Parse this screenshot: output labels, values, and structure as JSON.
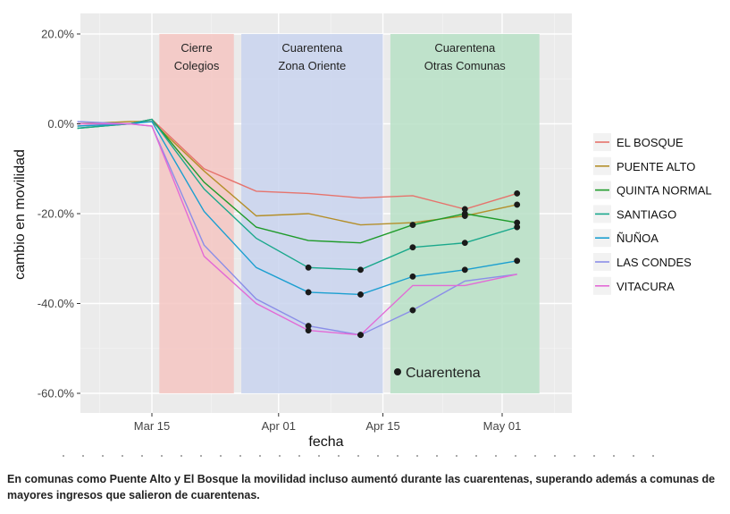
{
  "chart_data": {
    "type": "line",
    "xlabel": "fecha",
    "ylabel": "cambio en movilidad",
    "ylim": [
      -62,
      21
    ],
    "x_tick_labels": [
      "Mar 15",
      "Apr 01",
      "Apr 15",
      "May 01"
    ],
    "y_tick_labels": [
      "20.0%",
      "0.0%",
      "-20.0%",
      "-40.0%",
      "-60.0%"
    ],
    "y_ticks": [
      20,
      0,
      -20,
      -40,
      -60
    ],
    "x_dates": [
      "2020-03-05",
      "2020-03-12",
      "2020-03-15",
      "2020-03-22",
      "2020-03-29",
      "2020-04-05",
      "2020-04-12",
      "2020-04-19",
      "2020-04-26",
      "2020-05-03"
    ],
    "bands": [
      {
        "label_lines": [
          "Cierre",
          "Colegios"
        ],
        "start": "2020-03-16",
        "end": "2020-03-26",
        "color": "#f4c5c2"
      },
      {
        "label_lines": [
          "Cuarentena",
          "Zona Oriente"
        ],
        "start": "2020-03-27",
        "end": "2020-04-15",
        "color": "#c9d4ee"
      },
      {
        "label_lines": [
          "Cuarentena",
          "Otras Comunas"
        ],
        "start": "2020-04-16",
        "end": "2020-05-06",
        "color": "#b7e0c6"
      }
    ],
    "series": [
      {
        "name": "EL BOSQUE",
        "color": "#e6736c",
        "values": [
          -0.5,
          0,
          1,
          -10,
          -15,
          -15.5,
          -16.5,
          -16,
          -19,
          -15.5
        ],
        "quarantine": [
          false,
          false,
          false,
          false,
          false,
          false,
          false,
          false,
          true,
          true
        ]
      },
      {
        "name": "PUENTE ALTO",
        "color": "#b48f2a",
        "values": [
          0,
          0.5,
          0.5,
          -10.5,
          -20.5,
          -20,
          -22.5,
          -22,
          -20.5,
          -18
        ],
        "quarantine": [
          false,
          false,
          false,
          false,
          false,
          false,
          false,
          false,
          true,
          true
        ]
      },
      {
        "name": "QUINTA NORMAL",
        "color": "#1f9b2a",
        "values": [
          -1,
          0,
          1,
          -13,
          -23,
          -26,
          -26.5,
          -22.5,
          -20,
          -22
        ],
        "quarantine": [
          false,
          false,
          false,
          false,
          false,
          false,
          false,
          true,
          true,
          true
        ]
      },
      {
        "name": "SANTIAGO",
        "color": "#1aa88c",
        "values": [
          -1,
          0,
          1,
          -14.5,
          -25.5,
          -32,
          -32.5,
          -27.5,
          -26.5,
          -23
        ],
        "quarantine": [
          false,
          false,
          false,
          false,
          false,
          true,
          true,
          true,
          true,
          true
        ]
      },
      {
        "name": "ÑUÑOA",
        "color": "#1b9fd0",
        "values": [
          -0.5,
          0,
          0.5,
          -19.5,
          -32,
          -37.5,
          -38,
          -34,
          -32.5,
          -30.5
        ],
        "quarantine": [
          false,
          false,
          false,
          false,
          false,
          true,
          true,
          true,
          true,
          true
        ]
      },
      {
        "name": "LAS CONDES",
        "color": "#8b8ee8",
        "values": [
          0.5,
          0,
          -0.5,
          -27,
          -39,
          -45,
          -47,
          -41.5,
          -35,
          -33.5
        ],
        "quarantine": [
          false,
          false,
          false,
          false,
          false,
          true,
          true,
          true,
          false,
          false
        ]
      },
      {
        "name": "VITACURA",
        "color": "#e36ad6",
        "values": [
          0,
          0,
          -0.5,
          -29.5,
          -40,
          -46,
          -47,
          -36,
          -36,
          -33.5
        ],
        "quarantine": [
          false,
          false,
          false,
          false,
          false,
          true,
          true,
          false,
          false,
          false
        ]
      }
    ],
    "annotation": "Cuarentena",
    "legend_position": "right",
    "grid": true
  },
  "caption": "En comunas como Puente Alto y El Bosque la movilidad incluso aumentó durante las cuarentenas, superando además a comunas de mayores ingresos que salieron de cuarentenas."
}
